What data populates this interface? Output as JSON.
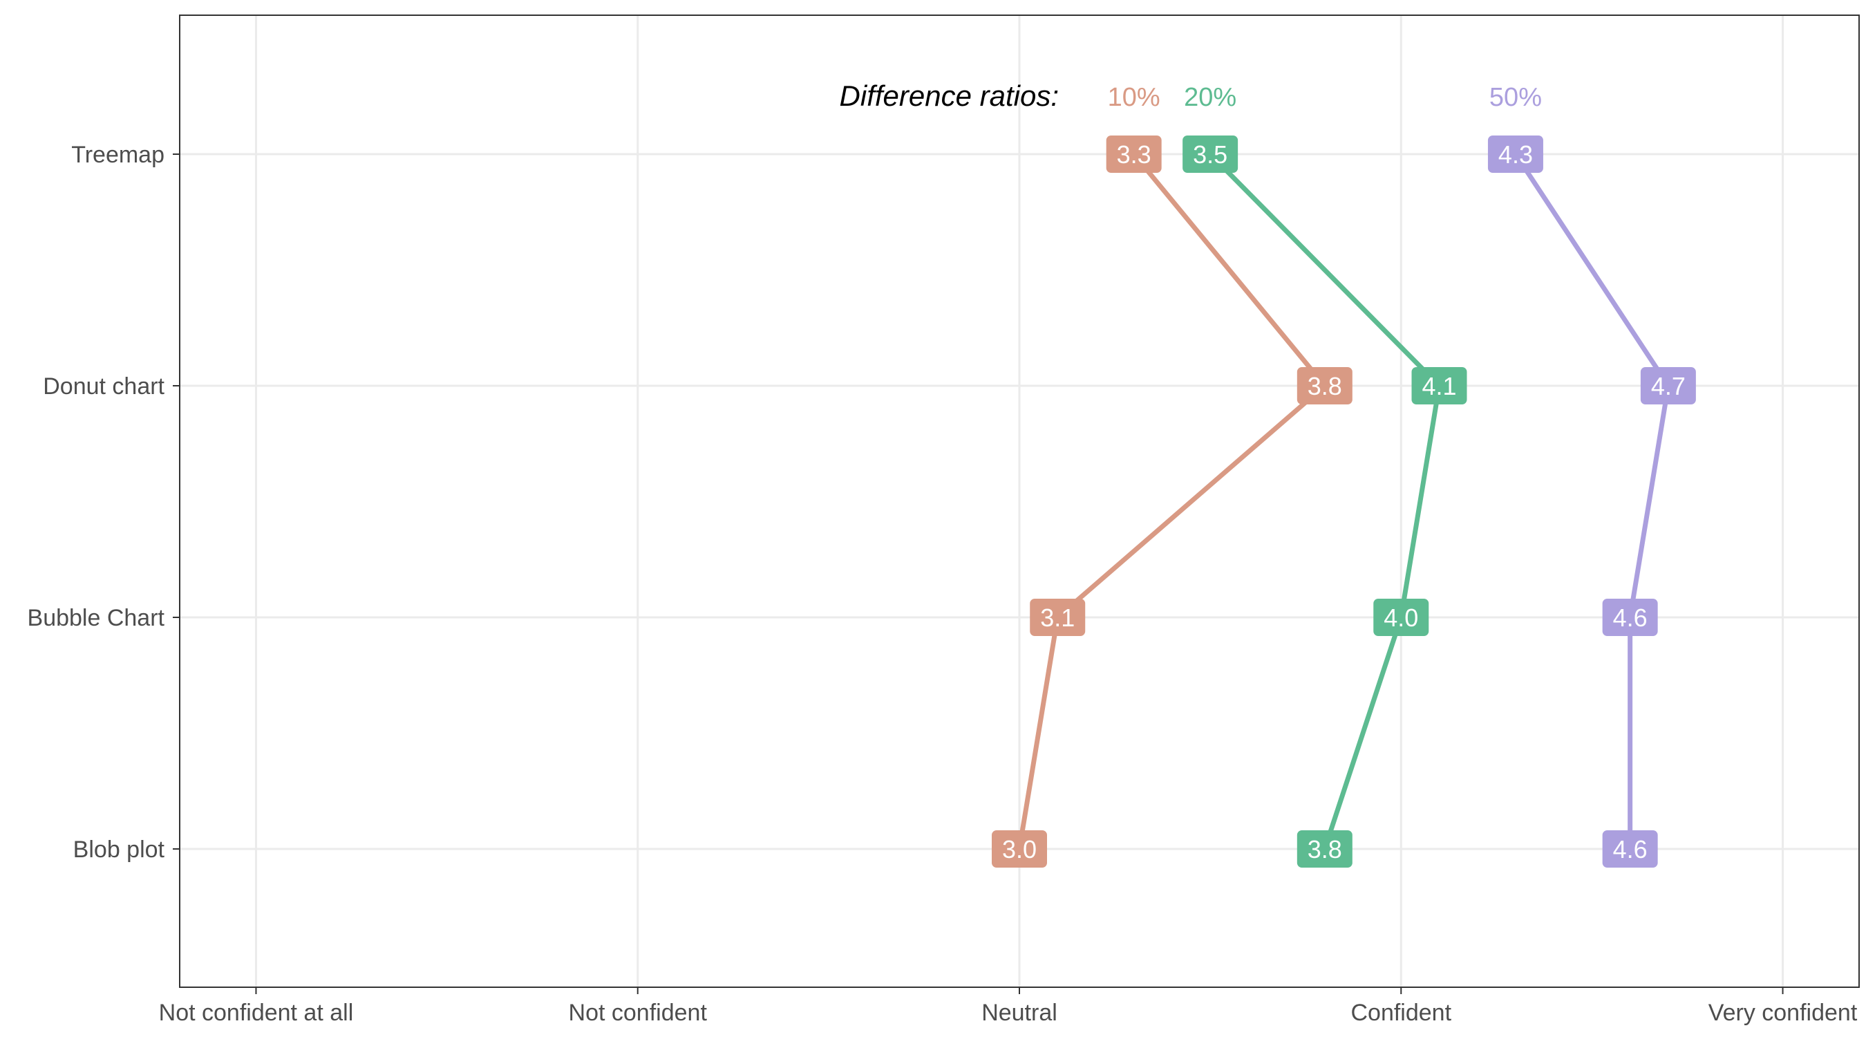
{
  "chart_data": {
    "type": "line",
    "orientation": "horizontal",
    "title": "",
    "xlabel": "",
    "ylabel": "",
    "x_ticks": [
      "Not confident at all",
      "Not confident",
      "Neutral",
      "Confident",
      "Very confident"
    ],
    "xlim": [
      0.8,
      5.2
    ],
    "categories": [
      "Treemap",
      "Donut chart",
      "Bubble Chart",
      "Blob plot"
    ],
    "legend_title": "Difference ratios:",
    "legend_position": "top",
    "grid": true,
    "series": [
      {
        "name": "10%",
        "color": "#d99a84",
        "values": [
          3.3,
          3.8,
          3.1,
          3.0
        ]
      },
      {
        "name": "20%",
        "color": "#5dbb91",
        "values": [
          3.5,
          4.1,
          4.0,
          3.8
        ]
      },
      {
        "name": "50%",
        "color": "#ab9fde",
        "values": [
          4.3,
          4.7,
          4.6,
          4.6
        ]
      }
    ]
  }
}
